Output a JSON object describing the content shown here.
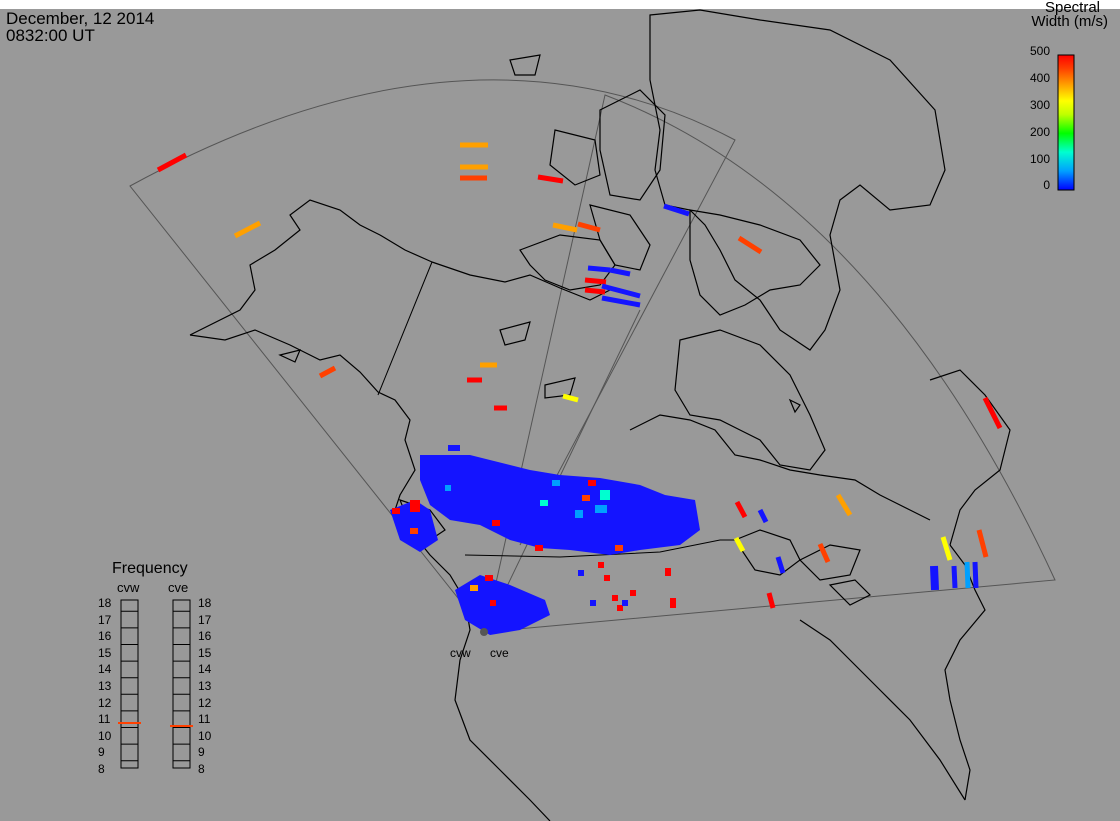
{
  "header": {
    "date": "December, 12 2014",
    "time": "0832:00 UT"
  },
  "colorbar": {
    "title_line1": "Spectral",
    "title_line2": "Width (m/s)",
    "ticks": [
      "500",
      "400",
      "300",
      "200",
      "100",
      "0"
    ],
    "range": [
      0,
      500
    ],
    "colors": [
      "#0000ff",
      "#00a0ff",
      "#00ffd0",
      "#00ff00",
      "#c0ff00",
      "#ffff00",
      "#ffa000",
      "#ff4000",
      "#ff0000"
    ]
  },
  "frequency_panel": {
    "title": "Frequency",
    "radars": [
      {
        "name": "cvw",
        "frequency_mhz": 10.8,
        "marker_color": "#ff4000"
      },
      {
        "name": "cve",
        "frequency_mhz": 10.8,
        "marker_color": "#ff4000"
      }
    ],
    "ticks": [
      "18",
      "17",
      "16",
      "15",
      "14",
      "13",
      "12",
      "11",
      "10",
      "9",
      "8"
    ]
  },
  "sites": {
    "west": "cvw",
    "east": "cve"
  },
  "map_colors": {
    "background": "#999999",
    "coastline": "#000000",
    "fov_outline": "#555555"
  }
}
